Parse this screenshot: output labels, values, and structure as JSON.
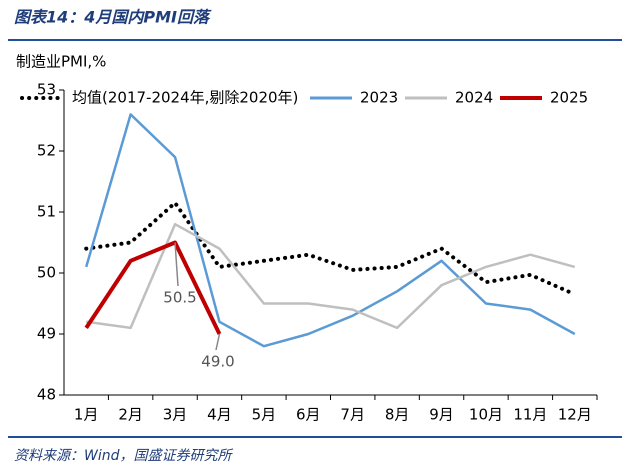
{
  "chart_data": {
    "type": "line",
    "title": "图表14：4月国内PMI回落",
    "y_label": "制造业PMI,%",
    "source": "资料来源：Wind，国盛证券研究所",
    "categories": [
      "1月",
      "2月",
      "3月",
      "4月",
      "5月",
      "6月",
      "7月",
      "8月",
      "9月",
      "10月",
      "11月",
      "12月"
    ],
    "series": [
      {
        "name": "均值(2017-2024年,剔除2020年)",
        "color": "#000000",
        "dash": "dotted",
        "values": [
          50.4,
          50.5,
          51.15,
          50.1,
          50.2,
          50.3,
          50.05,
          50.1,
          50.4,
          49.85,
          49.97,
          49.65
        ]
      },
      {
        "name": "2023",
        "color": "#5b9bd5",
        "values": [
          50.1,
          52.6,
          51.9,
          49.2,
          48.8,
          49.0,
          49.3,
          49.7,
          50.2,
          49.5,
          49.4,
          49.0
        ]
      },
      {
        "name": "2024",
        "color": "#bfbfbf",
        "values": [
          49.2,
          49.1,
          50.8,
          50.4,
          49.5,
          49.5,
          49.4,
          49.1,
          49.8,
          50.1,
          50.3,
          50.1
        ]
      },
      {
        "name": "2025",
        "color": "#c00000",
        "values": [
          49.1,
          50.2,
          50.5,
          49.0,
          null,
          null,
          null,
          null,
          null,
          null,
          null,
          null
        ]
      }
    ],
    "annotations": [
      {
        "text": "50.5",
        "series": 3,
        "index": 2
      },
      {
        "text": "49.0",
        "series": 3,
        "index": 3
      }
    ],
    "ylim": [
      48,
      53
    ],
    "yticks": [
      48,
      49,
      50,
      51,
      52,
      53
    ],
    "grid": false,
    "legend": "top"
  }
}
